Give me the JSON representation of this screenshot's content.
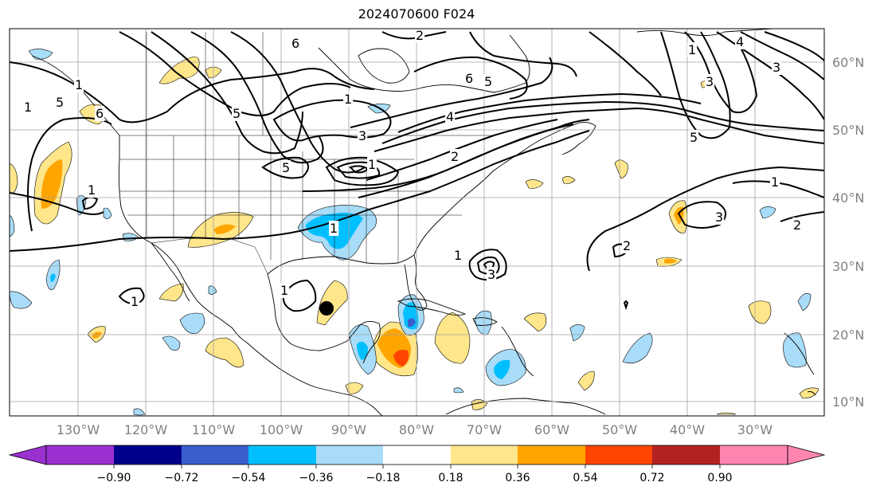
{
  "title": "2024070600 F024",
  "lat_labels": [
    "60°N",
    "50°N",
    "40°N",
    "30°N",
    "20°N",
    "10°N"
  ],
  "lon_labels": [
    "130°W",
    "120°W",
    "110°W",
    "100°W",
    "90°W",
    "80°W",
    "70°W",
    "60°W",
    "50°W",
    "40°W",
    "30°W"
  ],
  "colorbar": {
    "ticks": [
      "−0.90",
      "−0.72",
      "−0.54",
      "−0.36",
      "−0.18",
      "0.18",
      "0.36",
      "0.54",
      "0.72",
      "0.90"
    ],
    "colors": [
      "#9b30d0",
      "#00008b",
      "#3a5fcd",
      "#00bfff",
      "#a8dcf8",
      "#ffffff",
      "#ffe68a",
      "#ffa500",
      "#ff4500",
      "#b22222",
      "#ff85b0"
    ]
  },
  "contour_labels": [
    "6",
    "6",
    "5",
    "5",
    "4",
    "3",
    "2",
    "1",
    "1",
    "1",
    "1",
    "1",
    "5",
    "5",
    "2",
    "1",
    "3",
    "4",
    "3",
    "1",
    "2",
    "3",
    "2",
    "1",
    "3",
    "5",
    "6",
    "1",
    "1",
    "1"
  ],
  "colors": {
    "contour": "#000000",
    "coast": "#000000",
    "grid": "#a0a0a0",
    "storm_marker": "#000000"
  }
}
